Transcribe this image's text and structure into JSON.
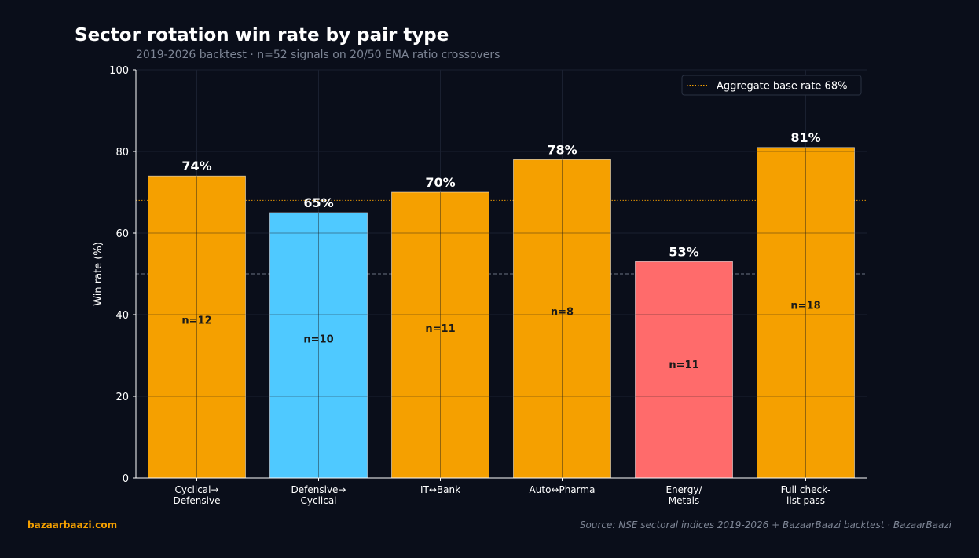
{
  "chart_data": {
    "type": "bar",
    "title": "Sector rotation win rate by pair type",
    "subtitle": "2019-2026 backtest  ·  n=52 signals on 20/50 EMA ratio crossovers",
    "ylabel": "Win rate (%)",
    "xlabel": "",
    "ylim": [
      0,
      100
    ],
    "yticks": [
      0,
      20,
      40,
      60,
      80,
      100
    ],
    "grid": true,
    "legend_position": "top-right",
    "categories": [
      [
        "Cyclical→",
        "Defensive"
      ],
      [
        "Defensive→",
        "Cyclical"
      ],
      [
        "IT↔Bank"
      ],
      [
        "Auto↔Pharma"
      ],
      [
        "Energy/",
        "Metals"
      ],
      [
        "Full check-",
        "list pass"
      ]
    ],
    "values": [
      74,
      65,
      70,
      78,
      53,
      81
    ],
    "value_labels": [
      "74%",
      "65%",
      "70%",
      "78%",
      "53%",
      "81%"
    ],
    "counts": [
      "n=12",
      "n=10",
      "n=11",
      "n=8",
      "n=11",
      "n=18"
    ],
    "bar_colors": [
      "#f5a000",
      "#4fc9ff",
      "#f5a000",
      "#f5a000",
      "#ff6b6b",
      "#f5a000"
    ],
    "reference_lines": [
      {
        "value": 68,
        "label": "Aggregate base rate 68%",
        "color": "#f5a000",
        "style": "dotted",
        "in_legend": true
      },
      {
        "value": 50,
        "label": "",
        "color": "#8a93a6",
        "style": "dashed",
        "in_legend": false
      }
    ]
  },
  "footer": {
    "brand": "bazaarbaazi.com",
    "source": "Source: NSE sectoral indices 2019-2026 + BazaarBaazi backtest  ·  BazaarBaazi"
  },
  "colors": {
    "background": "#0a0e1a",
    "text": "#ffffff",
    "muted": "#7d8595",
    "accent": "#f5a000"
  }
}
